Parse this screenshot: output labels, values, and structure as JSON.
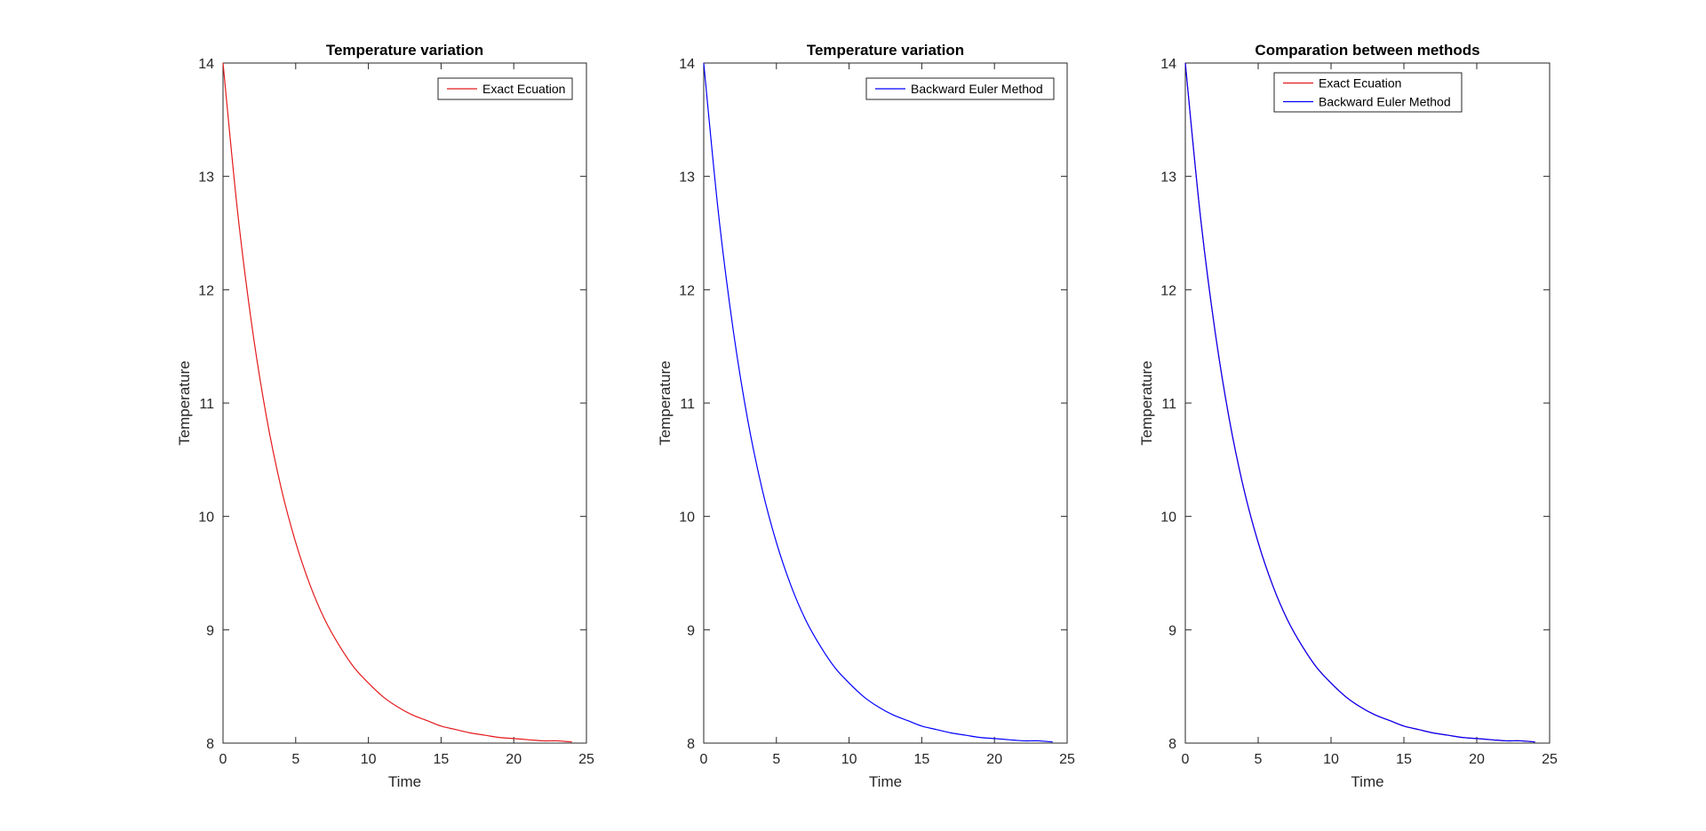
{
  "chart_data": [
    {
      "type": "line",
      "title": "Temperature variation",
      "xlabel": "Time",
      "ylabel": "Temperature",
      "xlim": [
        0,
        25
      ],
      "ylim": [
        8,
        14
      ],
      "xticks": [
        0,
        5,
        10,
        15,
        20,
        25
      ],
      "yticks": [
        8,
        9,
        10,
        11,
        12,
        13,
        14
      ],
      "grid": false,
      "legend": "top-right",
      "series": [
        {
          "name": "Exact Ecuation",
          "color": "#e41a1c",
          "x": [
            0,
            1,
            2,
            3,
            4,
            5,
            6,
            7,
            8,
            9,
            10,
            11,
            12,
            13,
            14,
            15,
            16,
            17,
            18,
            19,
            20,
            21,
            22,
            23,
            24
          ],
          "y": [
            14,
            12.69,
            11.67,
            10.87,
            10.25,
            9.77,
            9.39,
            9.09,
            8.86,
            8.67,
            8.53,
            8.41,
            8.32,
            8.25,
            8.2,
            8.15,
            8.12,
            8.09,
            8.07,
            8.05,
            8.04,
            8.03,
            8.02,
            8.02,
            8.01
          ]
        }
      ]
    },
    {
      "type": "line",
      "title": "Temperature variation",
      "xlabel": "Time",
      "ylabel": "Temperature",
      "xlim": [
        0,
        25
      ],
      "ylim": [
        8,
        14
      ],
      "xticks": [
        0,
        5,
        10,
        15,
        20,
        25
      ],
      "yticks": [
        8,
        9,
        10,
        11,
        12,
        13,
        14
      ],
      "grid": false,
      "legend": "top-right",
      "series": [
        {
          "name": "Backward Euler Method",
          "color": "#0000ff",
          "x": [
            0,
            1,
            2,
            3,
            4,
            5,
            6,
            7,
            8,
            9,
            10,
            11,
            12,
            13,
            14,
            15,
            16,
            17,
            18,
            19,
            20,
            21,
            22,
            23,
            24
          ],
          "y": [
            14,
            12.69,
            11.67,
            10.87,
            10.25,
            9.77,
            9.39,
            9.09,
            8.86,
            8.67,
            8.53,
            8.41,
            8.32,
            8.25,
            8.2,
            8.15,
            8.12,
            8.09,
            8.07,
            8.05,
            8.04,
            8.03,
            8.02,
            8.02,
            8.01
          ]
        }
      ]
    },
    {
      "type": "line",
      "title": "Comparation between methods",
      "xlabel": "Time",
      "ylabel": "Temperature",
      "xlim": [
        0,
        25
      ],
      "ylim": [
        8,
        14
      ],
      "xticks": [
        0,
        5,
        10,
        15,
        20,
        25
      ],
      "yticks": [
        8,
        9,
        10,
        11,
        12,
        13,
        14
      ],
      "grid": false,
      "legend": "top",
      "series": [
        {
          "name": "Exact Ecuation",
          "color": "#e41a1c",
          "x": [
            0,
            1,
            2,
            3,
            4,
            5,
            6,
            7,
            8,
            9,
            10,
            11,
            12,
            13,
            14,
            15,
            16,
            17,
            18,
            19,
            20,
            21,
            22,
            23,
            24
          ],
          "y": [
            14,
            12.69,
            11.67,
            10.87,
            10.25,
            9.77,
            9.39,
            9.09,
            8.86,
            8.67,
            8.53,
            8.41,
            8.32,
            8.25,
            8.2,
            8.15,
            8.12,
            8.09,
            8.07,
            8.05,
            8.04,
            8.03,
            8.02,
            8.02,
            8.01
          ]
        },
        {
          "name": "Backward Euler Method",
          "color": "#0000ff",
          "x": [
            0,
            1,
            2,
            3,
            4,
            5,
            6,
            7,
            8,
            9,
            10,
            11,
            12,
            13,
            14,
            15,
            16,
            17,
            18,
            19,
            20,
            21,
            22,
            23,
            24
          ],
          "y": [
            14,
            12.69,
            11.67,
            10.87,
            10.25,
            9.77,
            9.39,
            9.09,
            8.86,
            8.67,
            8.53,
            8.41,
            8.32,
            8.25,
            8.2,
            8.15,
            8.12,
            8.09,
            8.07,
            8.05,
            8.04,
            8.03,
            8.02,
            8.02,
            8.01
          ]
        }
      ]
    }
  ]
}
